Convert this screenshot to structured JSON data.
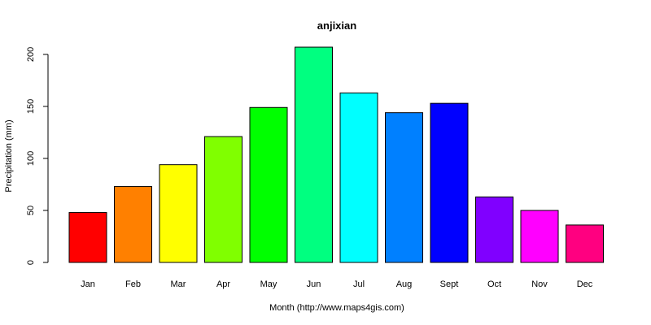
{
  "chart_data": {
    "type": "bar",
    "title": "anjixian",
    "xlabel": "Month (http://www.maps4gis.com)",
    "ylabel": "Precipitation (mm)",
    "categories": [
      "Jan",
      "Feb",
      "Mar",
      "Apr",
      "May",
      "Jun",
      "Jul",
      "Aug",
      "Sept",
      "Oct",
      "Nov",
      "Dec"
    ],
    "values": [
      48,
      73,
      94,
      121,
      149,
      207,
      163,
      144,
      153,
      63,
      50,
      36
    ],
    "colors": [
      "#FF0000",
      "#FF8000",
      "#FFFF00",
      "#80FF00",
      "#00FF00",
      "#00FF80",
      "#00FFFF",
      "#0080FF",
      "#0000FF",
      "#8000FF",
      "#FF00FF",
      "#FF0080"
    ],
    "yticks": [
      0,
      50,
      100,
      150,
      200
    ],
    "ylim": [
      0,
      207
    ],
    "grid": false,
    "legend": "none"
  }
}
